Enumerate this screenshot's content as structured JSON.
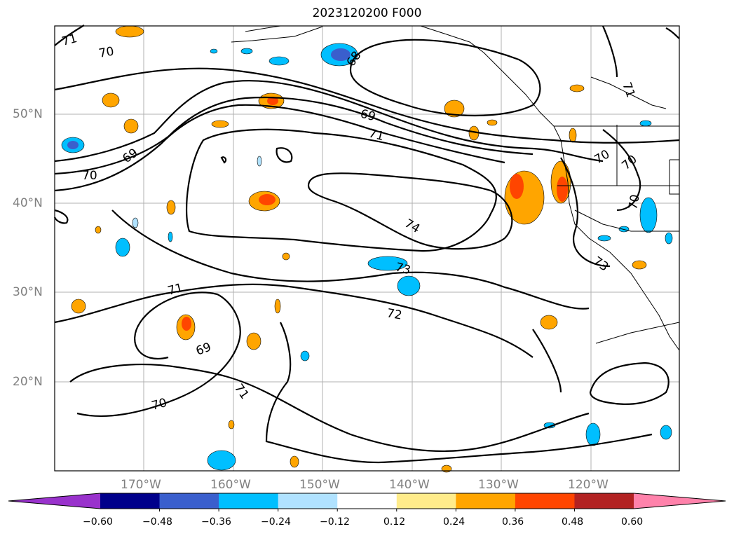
{
  "title": "2023120200 F000",
  "lat_labels": [
    "50°N",
    "40°N",
    "30°N",
    "20°N"
  ],
  "lon_labels": [
    "170°W",
    "160°W",
    "150°W",
    "140°W",
    "130°W",
    "120°W"
  ],
  "contour_labels": [
    "71",
    "70",
    "68",
    "69",
    "71",
    "69",
    "70",
    "74",
    "73",
    "71",
    "72",
    "70",
    "70",
    "71",
    "70",
    "73",
    "69",
    "71",
    "70"
  ],
  "colorbar": {
    "ticks": [
      "−0.60",
      "−0.48",
      "−0.36",
      "−0.24",
      "−0.12",
      "0.12",
      "0.24",
      "0.36",
      "0.48",
      "0.60"
    ],
    "colors": [
      "#9932CC",
      "#00008B",
      "#3A5FCD",
      "#00BFFF",
      "#B0E2FF",
      "#FFFFFF",
      "#FFEC8B",
      "#FFA500",
      "#FF4500",
      "#B22222",
      "#FF82AB"
    ]
  }
}
